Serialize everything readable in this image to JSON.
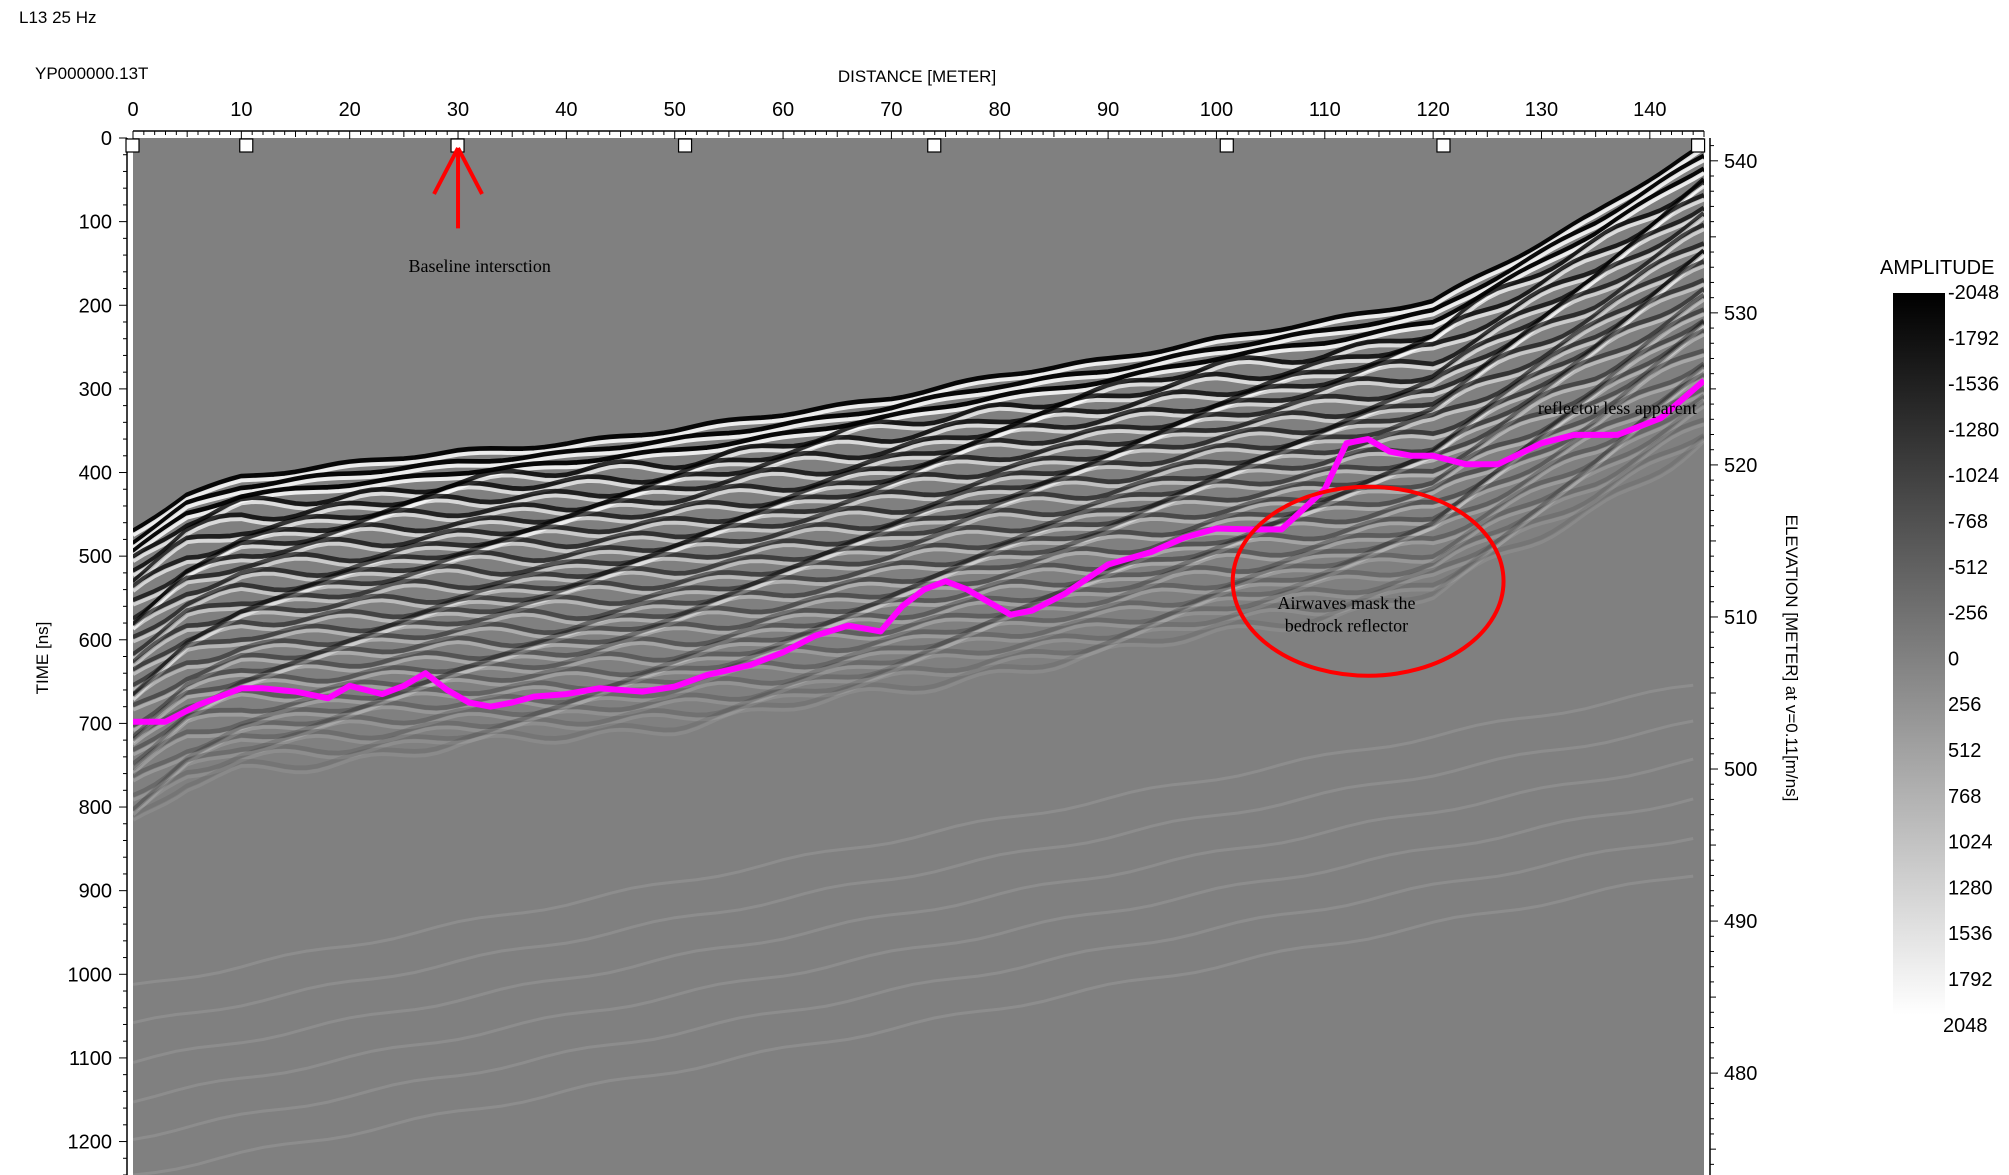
{
  "header": {
    "title": "L13 25 Hz",
    "file_name": "YP000000.13T"
  },
  "colorbar": {
    "title": "AMPLITUDE",
    "labels": [
      "-2048",
      "-1792",
      "-1536",
      "-1280",
      "-1024",
      "-768",
      "-512",
      "-256",
      "0",
      "256",
      "512",
      "768",
      "1024",
      "1280",
      "1536",
      "1792",
      "2048"
    ],
    "colors": {
      "top": "#000000",
      "bottom": "#ffffff"
    }
  },
  "chart_data": {
    "type": "heatmap",
    "xlabel": "DISTANCE [METER]",
    "ylabel": "TIME [ns]",
    "y2label": "ELEVATION [METER] at v=0.11[m/ns]",
    "xlim": [
      0,
      145
    ],
    "ylim": [
      0,
      1240
    ],
    "y2lim": [
      541.5,
      473.3
    ],
    "x_ticks": [
      0,
      10,
      20,
      30,
      40,
      50,
      60,
      70,
      80,
      90,
      100,
      110,
      120,
      130,
      140
    ],
    "y_ticks": [
      0,
      100,
      200,
      300,
      400,
      500,
      600,
      700,
      800,
      900,
      1000,
      1100,
      1200
    ],
    "y2_ticks": [
      540,
      530,
      520,
      510,
      500,
      490,
      480
    ],
    "markers_x": [
      0,
      10.5,
      30,
      51,
      74,
      101,
      121,
      144.5
    ],
    "first_arrival": {
      "x": [
        0,
        5,
        10,
        20,
        30,
        40,
        50,
        60,
        70,
        80,
        90,
        100,
        110,
        120,
        125,
        130,
        135,
        140,
        145
      ],
      "t": [
        470,
        425,
        405,
        390,
        375,
        365,
        350,
        330,
        310,
        285,
        265,
        240,
        220,
        195,
        160,
        125,
        90,
        50,
        10
      ]
    },
    "bedrock_reflector": {
      "name": "bedrock reflector",
      "color": "#ff00ff",
      "x": [
        0,
        3,
        6,
        10,
        12,
        15,
        18,
        20,
        23,
        25,
        27,
        29,
        31,
        33,
        35,
        37,
        40,
        43,
        47,
        50,
        53,
        57,
        60,
        63,
        66,
        69,
        71,
        73,
        75,
        77,
        79,
        81,
        83,
        86,
        90,
        94,
        97,
        100,
        103,
        106,
        110,
        112,
        114,
        116,
        118,
        120,
        123,
        126,
        130,
        133,
        137,
        141,
        145
      ],
      "t": [
        698,
        698,
        678,
        658,
        658,
        662,
        670,
        655,
        665,
        655,
        640,
        660,
        675,
        680,
        675,
        668,
        665,
        658,
        662,
        656,
        642,
        630,
        615,
        595,
        583,
        590,
        560,
        540,
        530,
        540,
        555,
        570,
        565,
        545,
        510,
        495,
        478,
        467,
        468,
        468,
        420,
        365,
        360,
        375,
        380,
        380,
        390,
        390,
        365,
        355,
        355,
        335,
        290
      ]
    },
    "annotations": [
      {
        "text": "Baseline intersction",
        "x": 32,
        "t": 160
      },
      {
        "text": "reflector less apparent",
        "x": 137,
        "t": 330
      },
      {
        "text": "Airwaves  mask the",
        "x": 112,
        "t": 563
      },
      {
        "text": "bedrock reflector",
        "x": 112,
        "t": 590
      }
    ],
    "circle": {
      "cx": 114,
      "cy": 530,
      "rx": 12.5,
      "ry": 113,
      "color": "#ff0000"
    },
    "arrow": {
      "x": 30,
      "t_tail": 108,
      "t_head": 0,
      "color": "#ff0000"
    }
  }
}
